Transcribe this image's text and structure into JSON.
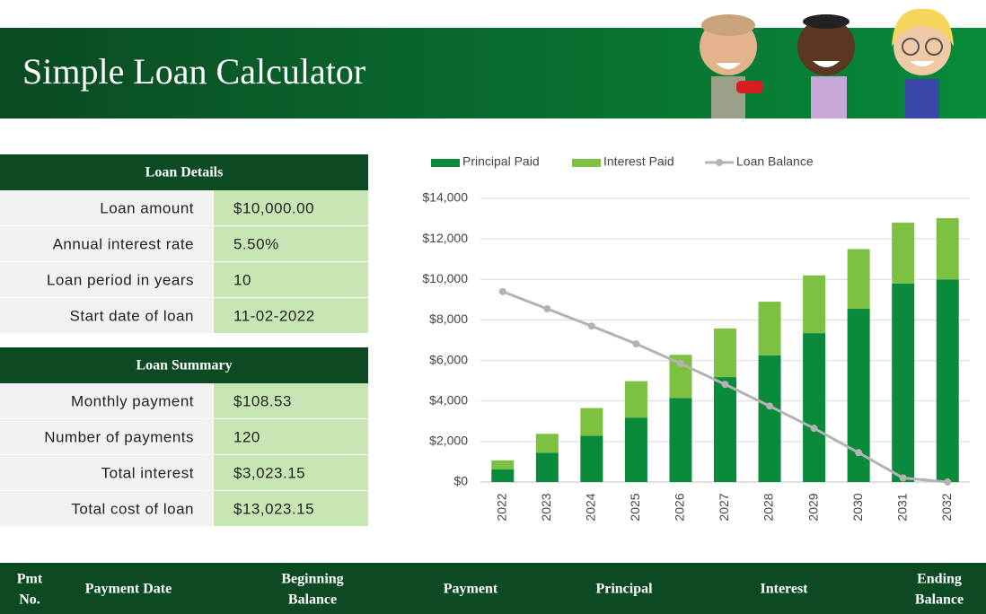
{
  "header": {
    "title": "Simple Loan Calculator"
  },
  "loan_details": {
    "title": "Loan Details",
    "rows": [
      [
        "Loan amount",
        "$10,000.00"
      ],
      [
        "Annual interest rate",
        "5.50%"
      ],
      [
        "Loan period in years",
        "10"
      ],
      [
        "Start date of loan",
        "11-02-2022"
      ]
    ]
  },
  "loan_summary": {
    "title": "Loan Summary",
    "rows": [
      [
        "Monthly payment",
        "$108.53"
      ],
      [
        "Number of payments",
        "120"
      ],
      [
        "Total interest",
        "$3,023.15"
      ],
      [
        "Total cost of loan",
        "$13,023.15"
      ]
    ]
  },
  "schedule": {
    "columns": [
      [
        "Pmt",
        "No."
      ],
      [
        "Payment Date"
      ],
      [
        "Beginning",
        "Balance"
      ],
      [
        "Payment"
      ],
      [
        "Principal"
      ],
      [
        "Interest"
      ],
      [
        "Ending",
        "Balance"
      ]
    ]
  },
  "chart_data": {
    "type": "bar",
    "stacked": true,
    "categories": [
      "2022",
      "2023",
      "2024",
      "2025",
      "2026",
      "2027",
      "2028",
      "2029",
      "2030",
      "2031",
      "2032"
    ],
    "series": [
      {
        "name": "Principal Paid",
        "color": "#0a8a3b",
        "values": [
          620,
          1450,
          2280,
          3180,
          4150,
          5180,
          6250,
          7350,
          8550,
          9800,
          10000
        ]
      },
      {
        "name": "Interest Paid",
        "color": "#7cc142",
        "values": [
          450,
          930,
          1370,
          1800,
          2130,
          2400,
          2650,
          2850,
          2950,
          3000,
          3023
        ]
      },
      {
        "name": "Loan Balance",
        "color": "#b3b3b3",
        "kind": "line",
        "values": [
          9400,
          8550,
          7700,
          6820,
          5850,
          4820,
          3750,
          2650,
          1450,
          200,
          0
        ]
      }
    ],
    "ylim": [
      0,
      14000
    ],
    "yticks": [
      {
        "value": 0,
        "label": "$0"
      },
      {
        "value": 2000,
        "label": "$2,000"
      },
      {
        "value": 4000,
        "label": "$4,000"
      },
      {
        "value": 6000,
        "label": "$6,000"
      },
      {
        "value": 8000,
        "label": "$8,000"
      },
      {
        "value": 10000,
        "label": "$10,000"
      },
      {
        "value": 12000,
        "label": "$12,000"
      },
      {
        "value": 14000,
        "label": "$14,000"
      }
    ],
    "grid": true,
    "legend": "top"
  }
}
